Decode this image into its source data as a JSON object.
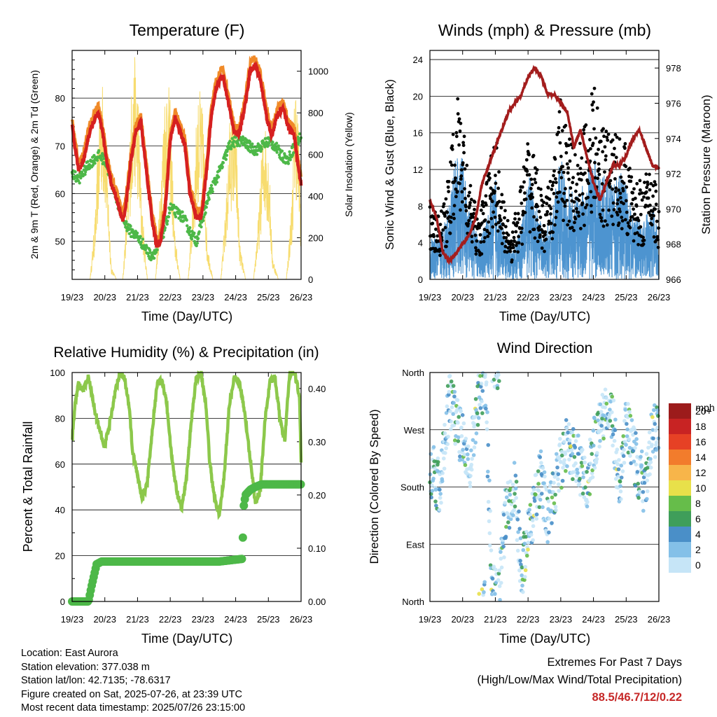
{
  "x_ticks": [
    "19/23",
    "20/23",
    "21/23",
    "22/23",
    "23/23",
    "24/23",
    "25/23",
    "26/23"
  ],
  "colors": {
    "temp2m": "#d62020",
    "temp9m": "#f08a28",
    "dewpoint": "#4db848",
    "solar": "#f7dc6f",
    "wind": "#4d94d0",
    "gust": "#000000",
    "pressure": "#a31d1d",
    "rh": "#8cc84b",
    "precip": "#4db848"
  },
  "panels": {
    "temperature": {
      "title": "Temperature (F)",
      "xlabel": "Time (Day/UTC)",
      "ylabel_left": "2m & 9m T (Red, Orange) & 2m Td (Green)",
      "ylabel_right": "Solar Insolation (Yellow)",
      "left_ticks": [
        "50",
        "60",
        "70",
        "80"
      ],
      "right_ticks": [
        "0",
        "200",
        "400",
        "600",
        "800",
        "1000"
      ]
    },
    "winds": {
      "title": "Winds (mph) & Pressure (mb)",
      "xlabel": "Time (Day/UTC)",
      "ylabel_left": "Sonic Wind & Gust (Blue, Black)",
      "ylabel_right": "Station Pressure (Maroon)",
      "left_ticks": [
        "0",
        "4",
        "8",
        "12",
        "16",
        "20",
        "24"
      ],
      "right_ticks": [
        "966",
        "968",
        "970",
        "972",
        "974",
        "976",
        "978"
      ]
    },
    "humidity": {
      "title": "Relative Humidity (%) & Precipitation (in)",
      "xlabel": "Time (Day/UTC)",
      "ylabel_left": "Percent & Total Rainfall",
      "left_ticks": [
        "0",
        "20",
        "40",
        "60",
        "80",
        "100"
      ],
      "right_ticks": [
        "0.00",
        "0.10",
        "0.20",
        "0.30",
        "0.40"
      ]
    },
    "direction": {
      "title": "Wind Direction",
      "xlabel": "Time (Day/UTC)",
      "ylabel_left": "Direction (Colored By Speed)",
      "left_ticks": [
        "North",
        "East",
        "South",
        "West",
        "North"
      ],
      "legend_title": "mph",
      "legend_labels": [
        "0",
        "2",
        "4",
        "6",
        "8",
        "10",
        "12",
        "14",
        "16",
        "18",
        "20+"
      ],
      "legend_colors": [
        "#c6e5f7",
        "#84c0e8",
        "#4a8fc8",
        "#3f9e5a",
        "#66bd4a",
        "#e8e04a",
        "#f7b54a",
        "#f27c2c",
        "#e64125",
        "#c82323",
        "#9c1b1b"
      ]
    }
  },
  "info": {
    "location": "Location: East Aurora",
    "elevation": "Station elevation: 377.038 m",
    "latlon": "Station lat/lon: 42.7135; -78.6317",
    "created": "Figure created on Sat, 2025-07-26, at 23:39 UTC",
    "recent": "Most recent data timestamp: 2025/07/26 23:15:00"
  },
  "extremes": {
    "heading": "Extremes For Past 7 Days",
    "legend": "(High/Low/Max Wind/Total Precipitation)",
    "values": "88.5/46.7/12/0.22"
  },
  "chart_data": [
    {
      "type": "line",
      "title": "Temperature (F)",
      "xlabel": "Time (Day/UTC)",
      "ylabel": "2m & 9m T (Red, Orange) & 2m Td (Green)",
      "y2label": "Solar Insolation (Yellow)",
      "ylim": [
        42,
        90
      ],
      "y2lim": [
        0,
        1100
      ],
      "x_unit": "days since 19/23",
      "series": [
        {
          "name": "2m T",
          "axis": "left",
          "x": [
            0,
            0.08,
            0.2,
            0.35,
            0.5,
            0.65,
            0.8,
            0.95,
            1.05,
            1.2,
            1.4,
            1.55,
            1.65,
            1.8,
            1.95,
            2.1,
            2.25,
            2.45,
            2.6,
            2.7,
            2.85,
            3.0,
            3.15,
            3.3,
            3.45,
            3.6,
            3.8,
            3.95,
            4.1,
            4.25,
            4.4,
            4.6,
            4.75,
            4.95,
            5.1,
            5.3,
            5.45,
            5.6,
            5.75,
            5.95,
            6.1,
            6.25,
            6.45,
            6.6,
            6.8,
            6.9,
            7.0
          ],
          "y": [
            74,
            70,
            65,
            67,
            72,
            75,
            77,
            72,
            67,
            62,
            58,
            54,
            58,
            67,
            73,
            75,
            66,
            54,
            49,
            50,
            57,
            71,
            76,
            73,
            70,
            60,
            55,
            55,
            64,
            76,
            82,
            85,
            80,
            73,
            72,
            79,
            86,
            87,
            84,
            76,
            72,
            76,
            78,
            74,
            72,
            66,
            62
          ]
        },
        {
          "name": "2m Td",
          "axis": "left",
          "x": [
            0,
            0.2,
            0.5,
            0.8,
            1.0,
            1.2,
            1.4,
            1.6,
            1.8,
            2.0,
            2.2,
            2.4,
            2.6,
            2.8,
            3.0,
            3.2,
            3.4,
            3.6,
            3.8,
            4.0,
            4.2,
            4.4,
            4.6,
            4.8,
            5.0,
            5.2,
            5.4,
            5.6,
            5.8,
            6.0,
            6.2,
            6.4,
            6.6,
            6.8,
            7.0
          ],
          "y": [
            64,
            63,
            66,
            68,
            67,
            63,
            58,
            54,
            52,
            51,
            49,
            47,
            48,
            52,
            57,
            56,
            55,
            52,
            50,
            55,
            60,
            63,
            66,
            70,
            71,
            71,
            70,
            69,
            70,
            71,
            70,
            68,
            67,
            70,
            72
          ]
        },
        {
          "name": "Solar Insolation",
          "axis": "right",
          "x": [
            0,
            0.55,
            0.72,
            0.82,
            0.9,
            1.0,
            1.1,
            1.2,
            1.35,
            1.55,
            1.72,
            1.82,
            1.92,
            2.02,
            2.12,
            2.3,
            2.55,
            2.72,
            2.82,
            2.92,
            3.02,
            3.12,
            3.3,
            3.55,
            3.72,
            3.82,
            3.92,
            4.02,
            4.12,
            4.3,
            4.55,
            4.72,
            4.82,
            4.92,
            5.02,
            5.12,
            5.3,
            5.55,
            5.72,
            5.82,
            5.92,
            6.02,
            6.12,
            6.3,
            6.55,
            6.72,
            6.82,
            6.92,
            7.0
          ],
          "y": [
            0,
            0,
            350,
            800,
            1000,
            860,
            450,
            60,
            0,
            0,
            500,
            950,
            1080,
            900,
            400,
            0,
            0,
            520,
            900,
            1000,
            820,
            260,
            0,
            0,
            480,
            850,
            920,
            760,
            200,
            0,
            0,
            420,
            780,
            850,
            700,
            180,
            0,
            0,
            360,
            700,
            760,
            600,
            120,
            0,
            0,
            400,
            1020,
            760,
            300
          ]
        }
      ]
    },
    {
      "type": "scatter",
      "title": "Winds (mph) & Pressure (mb)",
      "xlabel": "Time (Day/UTC)",
      "ylabel": "Sonic Wind & Gust (Blue, Black)",
      "y2label": "Station Pressure (Maroon)",
      "ylim": [
        0,
        25
      ],
      "y2lim": [
        966,
        979
      ],
      "x_unit": "days since 19/23",
      "series": [
        {
          "name": "Sonic Wind",
          "axis": "left",
          "x": [
            0,
            0.3,
            0.6,
            0.8,
            1.0,
            1.2,
            1.5,
            1.8,
            2.0,
            2.2,
            2.5,
            2.8,
            3.0,
            3.2,
            3.5,
            3.8,
            4.0,
            4.2,
            4.5,
            4.8,
            5.0,
            5.2,
            5.5,
            5.8,
            6.0,
            6.2,
            6.5,
            6.8,
            7.0
          ],
          "y": [
            3,
            3,
            6,
            9,
            9,
            5,
            3,
            5,
            8,
            4,
            2,
            4,
            8,
            6,
            3,
            6,
            9,
            7,
            6,
            8,
            9,
            8,
            7,
            8,
            7,
            5,
            4,
            6,
            3
          ]
        },
        {
          "name": "Gust",
          "axis": "left",
          "x": [
            0,
            0.3,
            0.6,
            0.8,
            1.0,
            1.2,
            1.5,
            1.8,
            2.0,
            2.2,
            2.5,
            2.8,
            3.0,
            3.2,
            3.5,
            3.8,
            4.0,
            4.2,
            4.5,
            4.8,
            5.0,
            5.2,
            5.5,
            5.8,
            6.0,
            6.2,
            6.5,
            6.8,
            7.0
          ],
          "y": [
            6,
            5,
            9,
            15,
            14,
            8,
            5,
            9,
            13,
            7,
            4,
            8,
            12,
            10,
            6,
            10,
            15,
            12,
            10,
            14,
            16,
            13,
            12,
            12,
            11,
            8,
            8,
            10,
            6
          ]
        },
        {
          "name": "Station Pressure",
          "axis": "right",
          "x": [
            0,
            0.2,
            0.4,
            0.6,
            0.8,
            1.0,
            1.2,
            1.4,
            1.6,
            1.8,
            2.0,
            2.2,
            2.4,
            2.6,
            2.8,
            3.0,
            3.2,
            3.4,
            3.6,
            3.8,
            4.0,
            4.2,
            4.4,
            4.6,
            4.8,
            5.0,
            5.2,
            5.4,
            5.6,
            5.8,
            6.0,
            6.2,
            6.4,
            6.6,
            6.8,
            7.0
          ],
          "y": [
            970.5,
            969.5,
            967.5,
            967.0,
            967.5,
            968.0,
            968.5,
            969.5,
            971.5,
            972.5,
            973.5,
            974.5,
            975.5,
            976.0,
            976.5,
            977.5,
            978.0,
            977.5,
            976.5,
            976.5,
            976.0,
            975.5,
            973.5,
            974.5,
            973.0,
            971.5,
            970.5,
            971.5,
            972.5,
            972.5,
            973.0,
            974.0,
            974.5,
            973.5,
            972.5,
            972.3
          ]
        }
      ]
    },
    {
      "type": "line",
      "title": "Relative Humidity (%) & Precipitation (in)",
      "xlabel": "Time (Day/UTC)",
      "ylabel": "Percent & Total Rainfall",
      "ylim": [
        0,
        100
      ],
      "y2lim": [
        0,
        0.43
      ],
      "x_unit": "days since 19/23",
      "series": [
        {
          "name": "Relative Humidity",
          "axis": "left",
          "x": [
            0,
            0.1,
            0.2,
            0.35,
            0.5,
            0.6,
            0.75,
            0.9,
            1.0,
            1.15,
            1.3,
            1.45,
            1.6,
            1.75,
            1.85,
            2.0,
            2.15,
            2.3,
            2.45,
            2.6,
            2.75,
            2.9,
            3.05,
            3.2,
            3.35,
            3.5,
            3.65,
            3.8,
            3.95,
            4.1,
            4.2,
            4.35,
            4.5,
            4.65,
            4.8,
            4.95,
            5.1,
            5.25,
            5.45,
            5.6,
            5.75,
            5.9,
            6.05,
            6.2,
            6.35,
            6.5,
            6.65,
            6.8,
            6.95,
            7.0
          ],
          "y": [
            70,
            88,
            95,
            92,
            98,
            90,
            80,
            72,
            68,
            78,
            90,
            100,
            98,
            85,
            65,
            55,
            45,
            52,
            75,
            95,
            97,
            85,
            62,
            48,
            40,
            55,
            80,
            98,
            99,
            85,
            62,
            45,
            38,
            55,
            85,
            98,
            96,
            85,
            62,
            43,
            48,
            80,
            96,
            98,
            80,
            70,
            100,
            100,
            90,
            62
          ]
        },
        {
          "name": "Total Precipitation",
          "axis": "right",
          "x": [
            0,
            0.5,
            0.6,
            0.75,
            0.9,
            1.5,
            3.0,
            4.5,
            5.2,
            5.25,
            5.3,
            5.45,
            5.6,
            5.8,
            6.0,
            6.5,
            7.0
          ],
          "y": [
            0.0,
            0.0,
            0.03,
            0.07,
            0.075,
            0.075,
            0.075,
            0.075,
            0.08,
            0.18,
            0.2,
            0.21,
            0.215,
            0.22,
            0.22,
            0.22,
            0.22
          ]
        }
      ]
    },
    {
      "type": "scatter",
      "title": "Wind Direction",
      "xlabel": "Time (Day/UTC)",
      "ylabel": "Direction (Colored By Speed)",
      "ylim": [
        0,
        360
      ],
      "y_ticks": [
        "North",
        "East",
        "South",
        "West",
        "North"
      ],
      "x_unit": "days since 19/23",
      "series": [
        {
          "name": "Direction",
          "x": [
            0.1,
            0.3,
            0.6,
            0.8,
            1.0,
            1.2,
            1.5,
            1.7,
            1.9,
            2.1,
            2.3,
            2.6,
            2.8,
            3.0,
            3.2,
            3.4,
            3.6,
            3.8,
            4.0,
            4.2,
            4.4,
            4.6,
            4.8,
            5.0,
            5.2,
            5.4,
            5.6,
            5.8,
            6.0,
            6.2,
            6.4,
            6.6,
            6.8
          ],
          "y": [
            200,
            175,
            320,
            280,
            250,
            210,
            330,
            350,
            10,
            20,
            130,
            180,
            40,
            110,
            150,
            200,
            120,
            170,
            220,
            250,
            230,
            210,
            190,
            240,
            290,
            310,
            280,
            170,
            280,
            240,
            200,
            180,
            270
          ]
        }
      ]
    }
  ]
}
